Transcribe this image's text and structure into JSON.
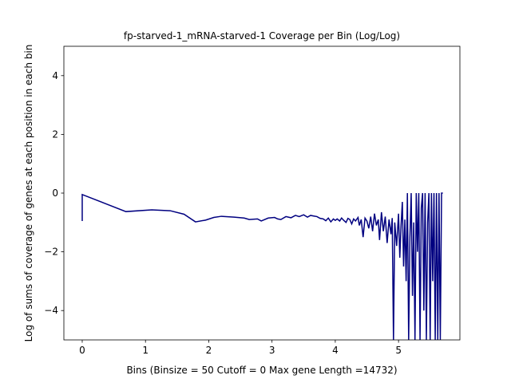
{
  "chart_data": {
    "type": "line",
    "title": "fp-starved-1_mRNA-starved-1 Coverage per Bin (Log/Log)",
    "x_label": "Bins  (Binsize = 50 Cutoff = 0 Max gene Length =14732)",
    "y_label": "Log of sums of coverage of genes at each position in each bin",
    "xlim": [
      -0.29,
      5.97
    ],
    "ylim": [
      -5,
      5
    ],
    "xticks": [
      0,
      1,
      2,
      3,
      4,
      5
    ],
    "yticks": [
      {
        "value": -4,
        "label": "−4"
      },
      {
        "value": -2,
        "label": "−2"
      },
      0,
      2,
      4
    ],
    "x": [
      0,
      0,
      0.69,
      1.1,
      1.39,
      1.61,
      1.79,
      1.95,
      2.08,
      2.2,
      2.4,
      2.56,
      2.64,
      2.77,
      2.83,
      2.94,
      3.04,
      3.09,
      3.14,
      3.22,
      3.3,
      3.37,
      3.43,
      3.5,
      3.56,
      3.61,
      3.66,
      3.71,
      3.76,
      3.81,
      3.85,
      3.89,
      3.93,
      3.97,
      4.0,
      4.03,
      4.07,
      4.1,
      4.13,
      4.17,
      4.2,
      4.23,
      4.26,
      4.29,
      4.32,
      4.36,
      4.38,
      4.41,
      4.44,
      4.47,
      4.5,
      4.53,
      4.56,
      4.59,
      4.62,
      4.65,
      4.68,
      4.7,
      4.73,
      4.76,
      4.79,
      4.82,
      4.85,
      4.88,
      4.9,
      4.92,
      4.94,
      4.97,
      5.0,
      5.02,
      5.04,
      5.06,
      5.08,
      5.1,
      5.12,
      5.14,
      5.16,
      5.18,
      5.2,
      5.22,
      5.24,
      5.26,
      5.28,
      5.3,
      5.32,
      5.34,
      5.36,
      5.38,
      5.4,
      5.42,
      5.44,
      5.46,
      5.48,
      5.5,
      5.52,
      5.54,
      5.56,
      5.58,
      5.6,
      5.62,
      5.64,
      5.66,
      5.68,
      5.7
    ],
    "series": [
      {
        "color": "#000080",
        "values": [
          -0.95,
          -0.05,
          -0.63,
          -0.57,
          -0.6,
          -0.72,
          -0.98,
          -0.92,
          -0.83,
          -0.79,
          -0.82,
          -0.85,
          -0.9,
          -0.88,
          -0.95,
          -0.85,
          -0.83,
          -0.88,
          -0.9,
          -0.8,
          -0.84,
          -0.76,
          -0.8,
          -0.74,
          -0.82,
          -0.76,
          -0.78,
          -0.8,
          -0.86,
          -0.88,
          -0.94,
          -0.85,
          -0.98,
          -0.88,
          -0.93,
          -0.88,
          -0.95,
          -0.85,
          -0.92,
          -1.0,
          -0.86,
          -0.9,
          -1.05,
          -0.88,
          -0.95,
          -0.83,
          -1.1,
          -0.9,
          -1.5,
          -0.85,
          -0.95,
          -1.2,
          -0.8,
          -1.3,
          -0.7,
          -1.1,
          -0.9,
          -1.6,
          -0.65,
          -1.3,
          -0.8,
          -1.7,
          -0.9,
          -1.4,
          -0.85,
          -5,
          -1.0,
          -1.8,
          -0.7,
          -2.2,
          -1.1,
          -0.3,
          -2.5,
          -0.9,
          -3.0,
          0,
          -5,
          -1.5,
          0,
          -3.5,
          -1.0,
          -5,
          0,
          -2,
          0,
          -5,
          -0.5,
          0,
          -4,
          0,
          -5,
          -1,
          0,
          -5,
          0,
          -3,
          0,
          -5,
          0,
          -5,
          0,
          -5,
          0,
          0
        ]
      }
    ]
  }
}
